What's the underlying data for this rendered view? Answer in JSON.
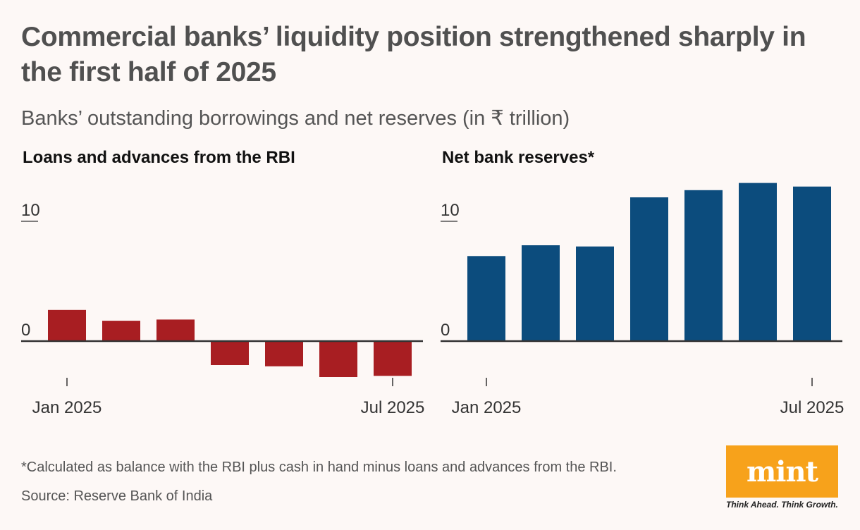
{
  "title": "Commercial banks’ liquidity position strengthened sharply in the first half of 2025",
  "subtitle": "Banks’ outstanding borrowings and net reserves (in ₹ trillion)",
  "footnote": "*Calculated as balance with the RBI plus cash in hand minus loans and advances from the RBI.",
  "source": "Source: Reserve Bank of India",
  "logo": {
    "word": "mint",
    "tagline": "Think Ahead. Think Growth."
  },
  "colors": {
    "loans": "#a81e22",
    "reserves": "#0c4c7d",
    "logo": "#f7a21b"
  },
  "chart_data": [
    {
      "type": "bar",
      "title": "Loans and advances from the RBI",
      "categories": [
        "Jan 2025",
        "Feb 2025",
        "Mar 2025",
        "Apr 2025",
        "May 2025",
        "Jun 2025",
        "Jul 2025"
      ],
      "values": [
        2.6,
        1.7,
        1.8,
        -2.0,
        -2.1,
        -3.0,
        -2.9
      ],
      "ylim": [
        -4,
        12
      ],
      "yticks": [
        0,
        10
      ],
      "xtick_labels": [
        {
          "category": "Jan 2025",
          "label": "Jan 2025"
        },
        {
          "category": "Jul 2025",
          "label": "Jul 2025"
        }
      ],
      "color": "#a81e22"
    },
    {
      "type": "bar",
      "title": "Net bank reserves*",
      "categories": [
        "Jan 2025",
        "Feb 2025",
        "Mar 2025",
        "Apr 2025",
        "May 2025",
        "Jun 2025",
        "Jul 2025"
      ],
      "values": [
        7.1,
        8.0,
        7.9,
        12.0,
        12.6,
        13.2,
        12.9
      ],
      "ylim": [
        -4,
        14
      ],
      "yticks": [
        0,
        10
      ],
      "xtick_labels": [
        {
          "category": "Jan 2025",
          "label": "Jan 2025"
        },
        {
          "category": "Jul 2025",
          "label": "Jul 2025"
        }
      ],
      "color": "#0c4c7d"
    }
  ]
}
